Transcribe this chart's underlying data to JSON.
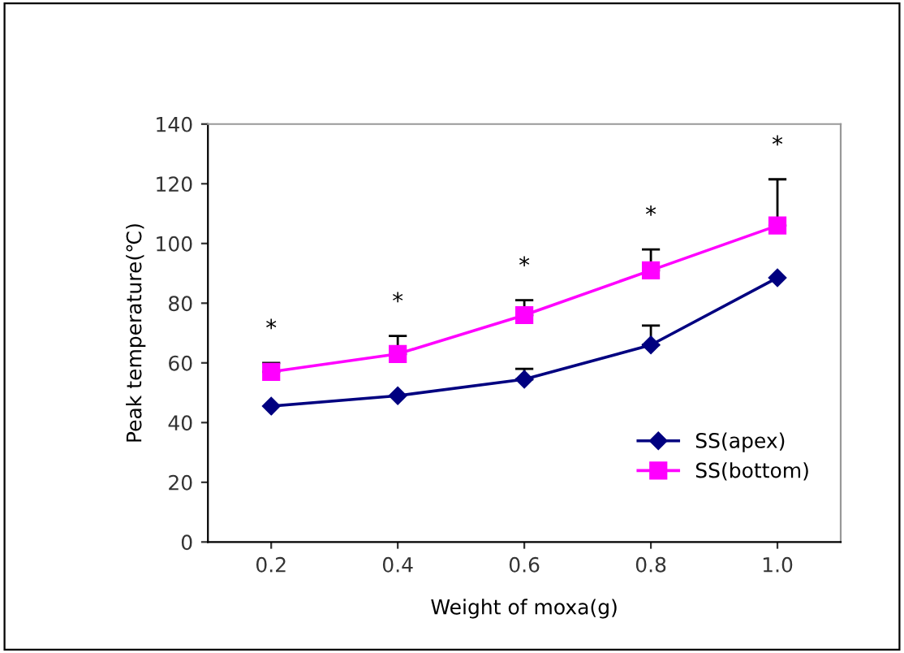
{
  "chart_data": {
    "type": "line",
    "xlabel": "Weight of moxa(g)",
    "ylabel": "Peak temperature(℃)",
    "categories": [
      "0.2",
      "0.4",
      "0.6",
      "0.8",
      "1.0"
    ],
    "series": [
      {
        "name": "SS(apex)",
        "color": "#000080",
        "marker": "diamond",
        "values": [
          45.5,
          49,
          54.5,
          66,
          88.5
        ],
        "errors": [
          null,
          null,
          [
            54.5,
            58
          ],
          [
            66,
            72.5
          ],
          null
        ]
      },
      {
        "name": "SS(bottom)",
        "color": "#ff00ff",
        "marker": "square",
        "values": [
          57,
          63,
          76,
          91,
          106
        ],
        "errors": [
          [
            57,
            60
          ],
          [
            63,
            69
          ],
          [
            76,
            81
          ],
          [
            91,
            98
          ],
          [
            106,
            121.5
          ]
        ]
      }
    ],
    "ylim": [
      0,
      140
    ],
    "yticks": [
      0,
      20,
      40,
      60,
      80,
      100,
      120,
      140
    ],
    "grid": false,
    "legend": "bottom right",
    "annotations": [
      "*",
      "*",
      "*",
      "*",
      "*"
    ]
  }
}
